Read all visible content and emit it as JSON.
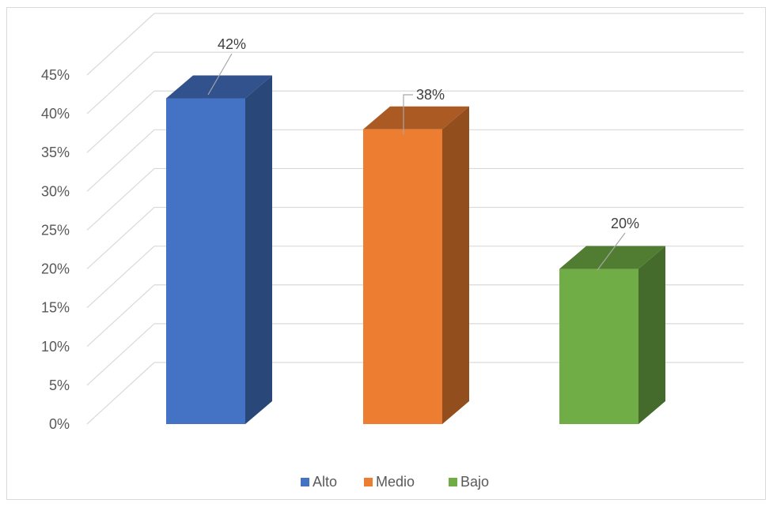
{
  "chart_data": {
    "type": "bar",
    "categories": [
      "Alto",
      "Medio",
      "Bajo"
    ],
    "values": [
      42,
      38,
      20
    ],
    "value_labels": [
      "42%",
      "38%",
      "20%"
    ],
    "colors": [
      "#4472C4",
      "#ED7D31",
      "#70AD47"
    ],
    "ylim": [
      0,
      45
    ],
    "ytick_labels": [
      "0%",
      "5%",
      "10%",
      "15%",
      "20%",
      "25%",
      "30%",
      "35%",
      "40%",
      "45%"
    ],
    "legend": [
      "Alto",
      "Medio",
      "Bajo"
    ],
    "legend_position": "bottom",
    "grid": true,
    "style": "3d-column"
  }
}
